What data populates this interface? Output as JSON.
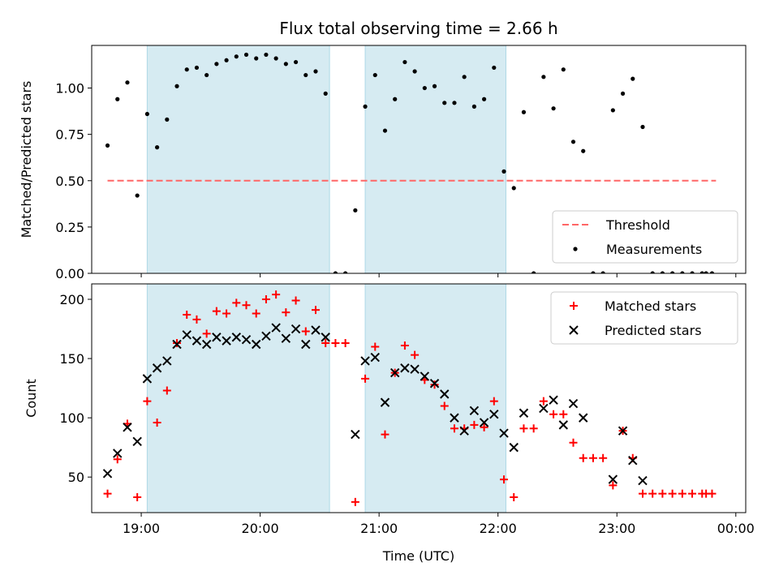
{
  "title": "Flux total observing time = 2.66 h",
  "colors": {
    "shade": "#add8e6",
    "threshold": "#ff6666",
    "measurement": "#000000",
    "matched": "#ff0000",
    "predicted": "#000000"
  },
  "chart_data": [
    {
      "type": "scatter",
      "ylabel": "Matched/Predicted stars",
      "xlabel": "",
      "xlim": [
        "18:35",
        "00:05"
      ],
      "ylim": [
        0,
        1.23
      ],
      "yticks": [
        0.0,
        0.25,
        0.5,
        0.75,
        1.0
      ],
      "ytick_labels": [
        "0.00",
        "0.25",
        "0.50",
        "0.75",
        "1.00"
      ],
      "grid": false,
      "shaded_intervals": [
        [
          "19:03",
          "20:35"
        ],
        [
          "20:53",
          "22:04"
        ]
      ],
      "threshold": {
        "name": "Threshold",
        "value": 0.5,
        "x_range": [
          "18:43",
          "23:50"
        ]
      },
      "legend": {
        "placement": "lower-right",
        "entries": [
          "Threshold",
          "Measurements"
        ]
      },
      "series": [
        {
          "name": "Measurements",
          "marker": "dot",
          "x": [
            "18:43",
            "18:48",
            "18:53",
            "18:58",
            "19:03",
            "19:08",
            "19:13",
            "19:18",
            "19:23",
            "19:28",
            "19:33",
            "19:38",
            "19:43",
            "19:48",
            "19:53",
            "19:58",
            "20:03",
            "20:08",
            "20:13",
            "20:18",
            "20:23",
            "20:28",
            "20:33",
            "20:38",
            "20:43",
            "20:48",
            "20:53",
            "20:58",
            "21:03",
            "21:08",
            "21:13",
            "21:18",
            "21:23",
            "21:28",
            "21:33",
            "21:38",
            "21:43",
            "21:48",
            "21:53",
            "21:58",
            "22:03",
            "22:08",
            "22:13",
            "22:18",
            "22:23",
            "22:28",
            "22:33",
            "22:38",
            "22:43",
            "22:48",
            "22:53",
            "22:58",
            "23:03",
            "23:08",
            "23:13",
            "23:18",
            "23:23",
            "23:28",
            "23:33",
            "23:38",
            "23:43",
            "23:45",
            "23:48"
          ],
          "y": [
            0.69,
            0.94,
            1.03,
            0.42,
            0.86,
            0.68,
            0.83,
            1.01,
            1.1,
            1.11,
            1.07,
            1.13,
            1.15,
            1.17,
            1.18,
            1.16,
            1.18,
            1.16,
            1.13,
            1.14,
            1.07,
            1.09,
            0.97,
            0.0,
            0.0,
            0.34,
            0.9,
            1.07,
            0.77,
            0.94,
            1.14,
            1.09,
            1.0,
            1.01,
            0.92,
            0.92,
            1.06,
            0.9,
            0.94,
            1.11,
            0.55,
            0.46,
            0.87,
            0.0,
            1.06,
            0.89,
            1.1,
            0.71,
            0.66,
            0.0,
            0.0,
            0.88,
            0.97,
            1.05,
            0.79,
            0.0,
            0.0,
            0.0,
            0.0,
            0.0,
            0.0,
            0.0,
            0.0
          ]
        }
      ]
    },
    {
      "type": "scatter",
      "ylabel": "Count",
      "xlabel": "Time (UTC)",
      "xlim": [
        "18:35",
        "00:05"
      ],
      "ylim": [
        20,
        213
      ],
      "yticks": [
        50,
        100,
        150,
        200
      ],
      "xticks": [
        "19:00",
        "20:00",
        "21:00",
        "22:00",
        "23:00",
        "00:00"
      ],
      "grid": false,
      "shaded_intervals": [
        [
          "19:03",
          "20:35"
        ],
        [
          "20:53",
          "22:04"
        ]
      ],
      "legend": {
        "placement": "upper-right",
        "entries": [
          "Matched stars",
          "Predicted stars"
        ]
      },
      "series": [
        {
          "name": "Matched stars",
          "marker": "plus",
          "x": [
            "18:43",
            "18:48",
            "18:53",
            "18:58",
            "19:03",
            "19:08",
            "19:13",
            "19:18",
            "19:23",
            "19:28",
            "19:33",
            "19:38",
            "19:43",
            "19:48",
            "19:53",
            "19:58",
            "20:03",
            "20:08",
            "20:13",
            "20:18",
            "20:23",
            "20:28",
            "20:33",
            "20:38",
            "20:43",
            "20:48",
            "20:53",
            "20:58",
            "21:03",
            "21:08",
            "21:13",
            "21:18",
            "21:23",
            "21:28",
            "21:33",
            "21:38",
            "21:43",
            "21:48",
            "21:53",
            "21:58",
            "22:03",
            "22:08",
            "22:13",
            "22:18",
            "22:23",
            "22:28",
            "22:33",
            "22:38",
            "22:43",
            "22:48",
            "22:53",
            "22:58",
            "23:03",
            "23:08",
            "23:13",
            "23:18",
            "23:23",
            "23:28",
            "23:33",
            "23:38",
            "23:43",
            "23:45",
            "23:48"
          ],
          "y": [
            36,
            65,
            95,
            33,
            114,
            96,
            123,
            163,
            187,
            183,
            171,
            190,
            188,
            197,
            195,
            188,
            200,
            204,
            189,
            199,
            173,
            191,
            163,
            163,
            163,
            29,
            133,
            160,
            86,
            138,
            161,
            153,
            132,
            128,
            110,
            91,
            91,
            94,
            92,
            114,
            48,
            33,
            91,
            91,
            114,
            103,
            103,
            79,
            66,
            66,
            66,
            43,
            89,
            66,
            36,
            36,
            36,
            36,
            36,
            36,
            36,
            36,
            36
          ]
        },
        {
          "name": "Predicted stars",
          "marker": "x",
          "x": [
            "18:43",
            "18:48",
            "18:53",
            "18:58",
            "19:03",
            "19:08",
            "19:13",
            "19:18",
            "19:23",
            "19:28",
            "19:33",
            "19:38",
            "19:43",
            "19:48",
            "19:53",
            "19:58",
            "20:03",
            "20:08",
            "20:13",
            "20:18",
            "20:23",
            "20:28",
            "20:33",
            "20:48",
            "20:53",
            "20:58",
            "21:03",
            "21:08",
            "21:13",
            "21:18",
            "21:23",
            "21:28",
            "21:33",
            "21:38",
            "21:43",
            "21:48",
            "21:53",
            "21:58",
            "22:03",
            "22:08",
            "22:13",
            "22:23",
            "22:28",
            "22:33",
            "22:38",
            "22:43",
            "22:58",
            "23:03",
            "23:08",
            "23:13"
          ],
          "y": [
            53,
            70,
            92,
            80,
            133,
            142,
            148,
            162,
            170,
            165,
            162,
            168,
            165,
            168,
            166,
            162,
            169,
            176,
            167,
            175,
            162,
            174,
            168,
            86,
            148,
            151,
            113,
            138,
            142,
            141,
            135,
            129,
            120,
            100,
            89,
            106,
            96,
            103,
            87,
            75,
            104,
            108,
            115,
            94,
            112,
            100,
            48,
            89,
            64,
            47
          ]
        }
      ]
    }
  ]
}
